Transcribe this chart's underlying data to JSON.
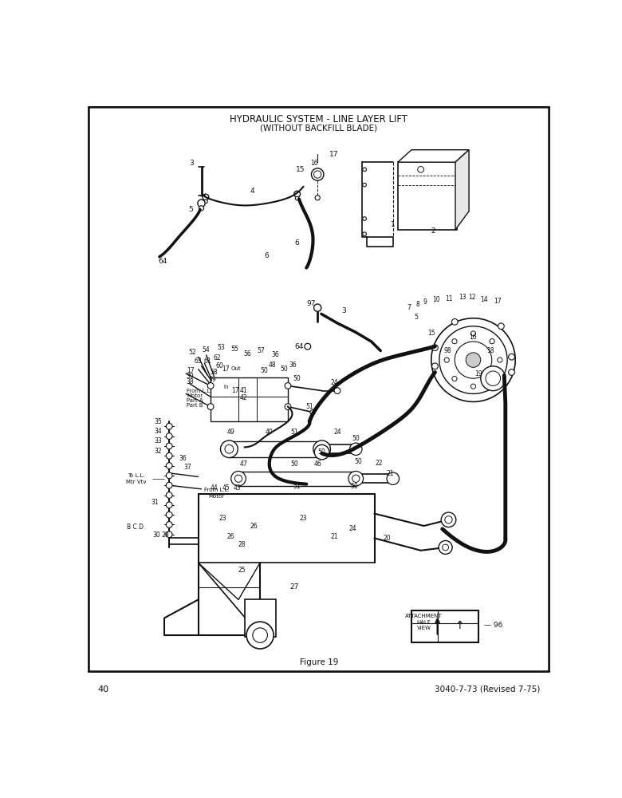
{
  "title_line1": "HYDRAULIC SYSTEM - LINE LAYER LIFT",
  "title_line2": "(WITHOUT BACKFILL BLADE)",
  "figure_label": "Figure 19",
  "page_number": "40",
  "doc_number": "3040-7-73 (Revised 7-75)",
  "bg": "#ffffff",
  "border": "#000000",
  "ink": "#111111",
  "title_fs": 8.5,
  "lfs": 6.5,
  "sfs": 5.5
}
